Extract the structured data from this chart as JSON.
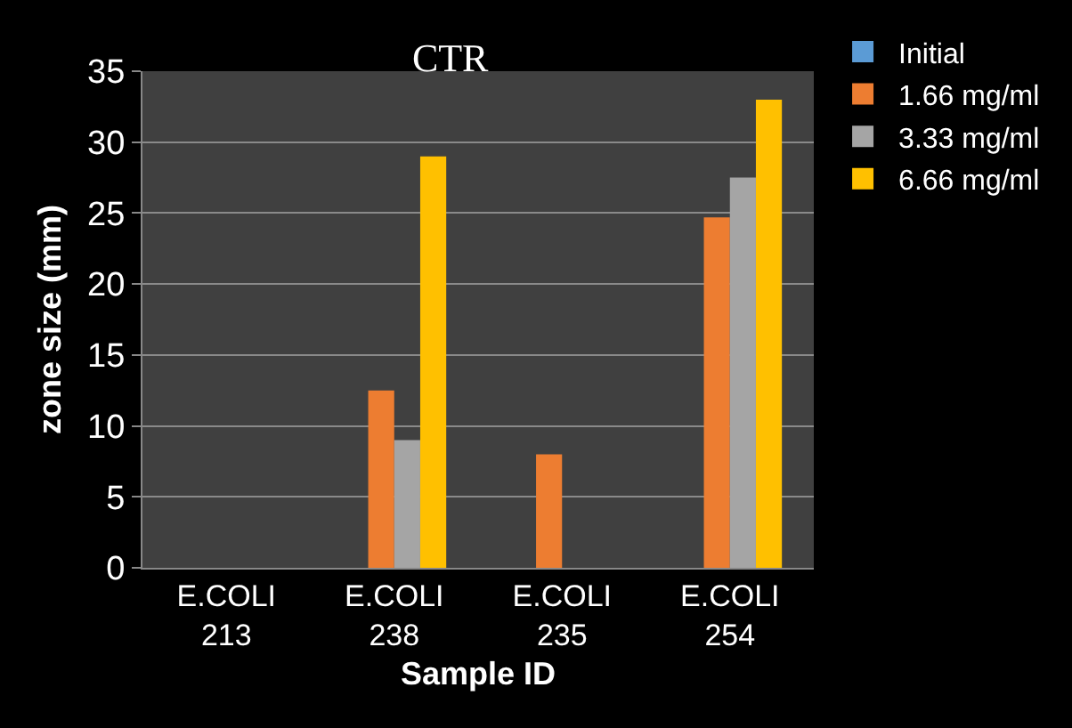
{
  "chart_data": {
    "type": "bar",
    "title": "CTR",
    "xlabel": "Sample ID",
    "ylabel": "zone size (mm)",
    "categories": [
      "E.COLI 213",
      "E.COLI 238",
      "E.COLI 235",
      "E.COLI 254"
    ],
    "series": [
      {
        "name": "Initial",
        "color": "#5b9bd5",
        "values": [
          0,
          0,
          0,
          0
        ]
      },
      {
        "name": "1.66 mg/ml",
        "color": "#ed7d31",
        "values": [
          0,
          12.5,
          8,
          24.7
        ]
      },
      {
        "name": "3.33 mg/ml",
        "color": "#a5a5a5",
        "values": [
          0,
          9,
          0,
          27.5
        ]
      },
      {
        "name": "6.66 mg/ml",
        "color": "#ffc000",
        "values": [
          0,
          29,
          0,
          33
        ]
      }
    ],
    "ylim": [
      0,
      35
    ],
    "yticks": [
      0,
      5,
      10,
      15,
      20,
      25,
      30,
      35
    ],
    "grid": "y",
    "legend": "right"
  }
}
